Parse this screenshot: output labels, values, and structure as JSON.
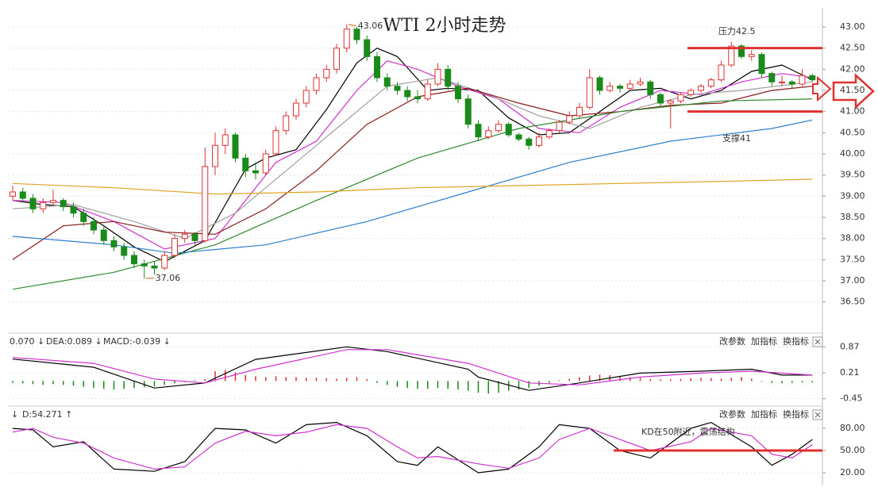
{
  "chart_data": [
    {
      "type": "candlestick",
      "title": "WTI 2小时走势",
      "grid": true,
      "up_color": "#e03030",
      "down_color": "#1a8a1a",
      "ylim": [
        35.8,
        43.45
      ],
      "yticks": [
        {
          "value": 36.5,
          "label": "36.50"
        },
        {
          "value": 37,
          "label": "37.00"
        },
        {
          "value": 37.5,
          "label": "37.50"
        },
        {
          "value": 38,
          "label": "38.00"
        },
        {
          "value": 38.5,
          "label": "38.50"
        },
        {
          "value": 39,
          "label": "39.00"
        },
        {
          "value": 39.5,
          "label": "39.50"
        },
        {
          "value": 40,
          "label": "40.00"
        },
        {
          "value": 40.5,
          "label": "40.50"
        },
        {
          "value": 41,
          "label": "41.00"
        },
        {
          "value": 41.5,
          "label": "41.50"
        },
        {
          "value": 42,
          "label": "42.00"
        },
        {
          "value": 42.5,
          "label": "42.50"
        },
        {
          "value": 43,
          "label": "43.00"
        }
      ],
      "candles": [
        [
          39.0,
          39.25,
          38.9,
          39.1
        ],
        [
          39.1,
          39.2,
          38.85,
          38.95
        ],
        [
          38.95,
          39.05,
          38.6,
          38.7
        ],
        [
          38.7,
          38.95,
          38.6,
          38.85
        ],
        [
          38.85,
          39.15,
          38.8,
          38.9
        ],
        [
          38.9,
          38.95,
          38.65,
          38.75
        ],
        [
          38.75,
          38.85,
          38.5,
          38.6
        ],
        [
          38.6,
          38.7,
          38.3,
          38.4
        ],
        [
          38.4,
          38.5,
          38.1,
          38.2
        ],
        [
          38.2,
          38.3,
          37.85,
          37.95
        ],
        [
          37.95,
          38.05,
          37.7,
          37.8
        ],
        [
          37.8,
          37.9,
          37.5,
          37.6
        ],
        [
          37.6,
          37.7,
          37.3,
          37.4
        ],
        [
          37.4,
          37.5,
          37.06,
          37.35
        ],
        [
          37.35,
          37.45,
          37.15,
          37.3
        ],
        [
          37.3,
          37.7,
          37.25,
          37.6
        ],
        [
          37.6,
          38.1,
          37.55,
          38.0
        ],
        [
          38.0,
          38.2,
          37.9,
          38.1
        ],
        [
          38.1,
          38.15,
          37.85,
          37.95
        ],
        [
          37.95,
          40.15,
          37.9,
          39.7
        ],
        [
          39.7,
          40.5,
          39.5,
          40.2
        ],
        [
          40.2,
          40.6,
          40.0,
          40.45
        ],
        [
          40.45,
          40.5,
          39.8,
          39.9
        ],
        [
          39.9,
          40.0,
          39.45,
          39.6
        ],
        [
          39.6,
          39.8,
          39.4,
          39.55
        ],
        [
          39.55,
          40.1,
          39.5,
          40.0
        ],
        [
          40.0,
          40.65,
          39.95,
          40.55
        ],
        [
          40.55,
          41.0,
          40.45,
          40.9
        ],
        [
          40.9,
          41.3,
          40.8,
          41.2
        ],
        [
          41.2,
          41.6,
          41.1,
          41.5
        ],
        [
          41.5,
          41.9,
          41.4,
          41.8
        ],
        [
          41.8,
          42.1,
          41.7,
          42.0
        ],
        [
          42.0,
          42.6,
          41.9,
          42.5
        ],
        [
          42.5,
          43.06,
          42.4,
          42.95
        ],
        [
          42.95,
          43.0,
          42.6,
          42.7
        ],
        [
          42.7,
          42.8,
          42.2,
          42.3
        ],
        [
          42.3,
          42.4,
          41.7,
          41.8
        ],
        [
          41.8,
          41.9,
          41.5,
          41.6
        ],
        [
          41.6,
          41.7,
          41.4,
          41.5
        ],
        [
          41.5,
          41.6,
          41.25,
          41.35
        ],
        [
          41.35,
          41.5,
          41.2,
          41.3
        ],
        [
          41.3,
          41.75,
          41.25,
          41.65
        ],
        [
          41.65,
          42.15,
          41.6,
          42.0
        ],
        [
          42.0,
          42.1,
          41.5,
          41.6
        ],
        [
          41.6,
          41.7,
          41.2,
          41.3
        ],
        [
          41.3,
          41.4,
          40.6,
          40.7
        ],
        [
          40.7,
          40.8,
          40.3,
          40.4
        ],
        [
          40.4,
          40.65,
          40.35,
          40.55
        ],
        [
          40.55,
          40.8,
          40.5,
          40.7
        ],
        [
          40.7,
          40.75,
          40.4,
          40.45
        ],
        [
          40.45,
          40.5,
          40.3,
          40.35
        ],
        [
          40.35,
          40.4,
          40.1,
          40.2
        ],
        [
          40.2,
          40.5,
          40.15,
          40.4
        ],
        [
          40.4,
          40.6,
          40.35,
          40.55
        ],
        [
          40.55,
          40.8,
          40.5,
          40.75
        ],
        [
          40.75,
          41.0,
          40.7,
          40.9
        ],
        [
          40.9,
          41.2,
          40.85,
          41.1
        ],
        [
          41.1,
          42.0,
          41.05,
          41.8
        ],
        [
          41.8,
          41.85,
          41.4,
          41.5
        ],
        [
          41.5,
          41.7,
          41.45,
          41.6
        ],
        [
          41.6,
          41.65,
          41.45,
          41.55
        ],
        [
          41.55,
          41.75,
          41.5,
          41.65
        ],
        [
          41.65,
          41.8,
          41.6,
          41.7
        ],
        [
          41.7,
          41.75,
          41.3,
          41.4
        ],
        [
          41.4,
          41.45,
          41.1,
          41.2
        ],
        [
          41.2,
          41.3,
          40.6,
          41.25
        ],
        [
          41.25,
          41.45,
          41.2,
          41.4
        ],
        [
          41.4,
          41.55,
          41.35,
          41.5
        ],
        [
          41.5,
          41.65,
          41.45,
          41.6
        ],
        [
          41.6,
          41.8,
          41.55,
          41.75
        ],
        [
          41.75,
          42.2,
          41.7,
          42.1
        ],
        [
          42.1,
          42.65,
          42.05,
          42.55
        ],
        [
          42.55,
          42.6,
          42.25,
          42.3
        ],
        [
          42.3,
          42.45,
          42.2,
          42.35
        ],
        [
          42.35,
          42.4,
          41.8,
          41.9
        ],
        [
          41.9,
          41.95,
          41.6,
          41.7
        ],
        [
          41.7,
          41.85,
          41.6,
          41.7
        ],
        [
          41.7,
          41.75,
          41.55,
          41.65
        ],
        [
          41.65,
          42.0,
          41.6,
          41.85
        ],
        [
          41.85,
          41.9,
          41.7,
          41.75
        ]
      ],
      "series": [
        {
          "color": "#000000",
          "x": [
            0,
            3,
            6,
            9,
            12,
            15,
            17,
            19,
            21,
            23,
            25,
            28,
            31,
            34,
            36,
            38,
            41,
            43,
            46,
            49,
            52,
            55,
            58,
            61,
            64,
            67,
            70,
            73,
            76,
            79
          ],
          "values": [
            38.9,
            38.8,
            38.75,
            38.3,
            37.8,
            37.45,
            37.7,
            37.95,
            38.8,
            39.64,
            39.9,
            40.1,
            41.05,
            42.15,
            42.5,
            42.3,
            41.5,
            41.55,
            41.5,
            40.85,
            40.45,
            40.5,
            41.0,
            41.5,
            41.55,
            41.3,
            41.5,
            41.95,
            42.1,
            41.75
          ]
        },
        {
          "color": "#d030d0",
          "x": [
            0,
            5,
            10,
            15,
            20,
            23,
            26,
            30,
            34,
            37,
            40,
            44,
            48,
            52,
            56,
            60,
            64,
            68,
            72,
            76,
            79
          ],
          "values": [
            38.9,
            38.85,
            38.4,
            37.75,
            38.0,
            38.9,
            39.8,
            40.3,
            41.5,
            42.2,
            42.0,
            41.6,
            41.3,
            40.6,
            40.5,
            41.1,
            41.5,
            41.4,
            41.7,
            41.9,
            41.8
          ]
        },
        {
          "color": "#a0a0a0",
          "x": [
            0,
            6,
            12,
            17,
            22,
            27,
            32,
            37,
            42,
            47,
            52,
            57,
            62,
            67,
            72,
            79
          ],
          "values": [
            38.7,
            38.8,
            38.4,
            38.0,
            38.6,
            39.6,
            40.6,
            41.6,
            41.8,
            41.4,
            40.9,
            40.6,
            41.1,
            41.4,
            41.5,
            41.7
          ]
        },
        {
          "color": "#8b1a1a",
          "x": [
            0,
            5,
            10,
            15,
            20,
            25,
            30,
            35,
            40,
            45,
            50,
            55,
            60,
            65,
            70,
            75,
            79
          ],
          "values": [
            37.5,
            38.3,
            38.4,
            38.15,
            38.1,
            38.7,
            39.6,
            40.7,
            41.35,
            41.55,
            41.2,
            40.9,
            41.0,
            41.15,
            41.2,
            41.5,
            41.6
          ]
        },
        {
          "color": "#2e8b2e",
          "x": [
            0,
            10,
            20,
            30,
            40,
            50,
            60,
            70,
            79
          ],
          "values": [
            36.8,
            37.2,
            37.85,
            38.9,
            39.9,
            40.6,
            41.0,
            41.25,
            41.3
          ]
        },
        {
          "color": "#2a7fd0",
          "x": [
            0,
            10,
            16,
            25,
            35,
            45,
            55,
            65,
            75,
            79
          ],
          "values": [
            38.05,
            37.85,
            37.65,
            37.85,
            38.4,
            39.1,
            39.8,
            40.3,
            40.6,
            40.8
          ]
        },
        {
          "color": "#e0a020",
          "x": [
            0,
            10,
            20,
            30,
            40,
            50,
            60,
            70,
            79
          ],
          "values": [
            39.3,
            39.2,
            39.05,
            39.1,
            39.2,
            39.25,
            39.3,
            39.35,
            39.4
          ]
        }
      ],
      "levels": [
        {
          "label": "压力42.5",
          "value": 42.5,
          "color": "#e03030"
        },
        {
          "label": "支撑41",
          "value": 41,
          "color": "#e03030"
        }
      ]
    },
    {
      "type": "macd",
      "grid": true,
      "header": [
        "0.070 ↓",
        "DEA:0.089 ↓",
        "MACD:-0.039 ↓"
      ],
      "buttons": [
        "改参数",
        "加指标",
        "换指标"
      ],
      "ylim": [
        -0.6,
        1.18
      ],
      "yticks": [
        -0.45,
        0.21,
        0.87
      ],
      "up_color": "#e03030",
      "down_color": "#1a8a1a",
      "histogram": [
        -0.05,
        -0.06,
        -0.08,
        -0.1,
        -0.08,
        -0.1,
        -0.12,
        -0.15,
        -0.18,
        -0.2,
        -0.22,
        -0.2,
        -0.18,
        -0.16,
        -0.14,
        -0.1,
        -0.06,
        -0.03,
        0.02,
        0.05,
        0.25,
        0.28,
        0.22,
        0.15,
        0.12,
        0.1,
        0.12,
        0.1,
        0.1,
        0.08,
        0.08,
        0.07,
        0.06,
        0.08,
        0.1,
        0.05,
        -0.05,
        -0.1,
        -0.15,
        -0.18,
        -0.2,
        -0.2,
        -0.18,
        -0.2,
        -0.22,
        -0.25,
        -0.3,
        -0.32,
        -0.3,
        -0.25,
        -0.22,
        -0.18,
        -0.12,
        -0.05,
        0.02,
        0.06,
        0.1,
        0.14,
        0.16,
        0.15,
        0.12,
        0.1,
        0.08,
        0.05,
        0.04,
        0.04,
        0.05,
        0.07,
        0.08,
        0.07,
        0.06,
        0.08,
        0.1,
        0.06,
        -0.02,
        -0.05,
        -0.06,
        -0.05,
        -0.04,
        -0.04
      ],
      "series": [
        {
          "color": "#000000",
          "x": [
            0,
            8,
            14,
            19,
            24,
            33,
            37,
            45,
            46,
            51,
            56,
            62,
            68,
            73,
            76,
            79
          ],
          "values": [
            0.56,
            0.35,
            -0.18,
            -0.05,
            0.55,
            0.87,
            0.75,
            0.3,
            0.1,
            -0.24,
            -0.05,
            0.2,
            0.25,
            0.3,
            0.15,
            0.15
          ]
        },
        {
          "color": "#d030d0",
          "x": [
            0,
            8,
            14,
            19,
            24,
            33,
            37,
            45,
            51,
            56,
            62,
            68,
            73,
            76,
            79
          ],
          "values": [
            0.6,
            0.45,
            0.05,
            -0.05,
            0.3,
            0.8,
            0.8,
            0.45,
            -0.05,
            -0.1,
            0.1,
            0.2,
            0.25,
            0.2,
            0.15
          ]
        }
      ]
    },
    {
      "type": "kd",
      "grid": true,
      "header": [
        "↓",
        "D:54.271 ↑"
      ],
      "buttons": [
        "改参数",
        "加指标",
        "换指标"
      ],
      "ylim": [
        5,
        108
      ],
      "yticks": [
        {
          "value": 20,
          "label": "20.00"
        },
        {
          "value": 50,
          "label": "50.00"
        },
        {
          "value": 80,
          "label": "80.00"
        }
      ],
      "series": [
        {
          "color": "#000000",
          "x": [
            0,
            2,
            4,
            7,
            10,
            14,
            17,
            20,
            23,
            26,
            29,
            32,
            35,
            38,
            40,
            42,
            46,
            49,
            52,
            54,
            57,
            60,
            63,
            67,
            69,
            73,
            75,
            77,
            79
          ],
          "values": [
            80,
            78,
            55,
            62,
            25,
            22,
            35,
            80,
            78,
            60,
            85,
            88,
            70,
            35,
            30,
            55,
            20,
            25,
            55,
            85,
            80,
            50,
            40,
            80,
            88,
            55,
            30,
            45,
            65
          ]
        },
        {
          "color": "#d030d0",
          "x": [
            0,
            2,
            4,
            7,
            10,
            14,
            17,
            20,
            23,
            26,
            29,
            32,
            35,
            38,
            40,
            42,
            46,
            49,
            52,
            54,
            57,
            60,
            63,
            67,
            69,
            73,
            75,
            77,
            79
          ],
          "values": [
            75,
            80,
            68,
            60,
            40,
            25,
            28,
            60,
            76,
            70,
            75,
            85,
            80,
            55,
            40,
            42,
            32,
            26,
            40,
            65,
            80,
            65,
            50,
            62,
            80,
            70,
            45,
            40,
            58
          ]
        }
      ],
      "levels": [
        {
          "label": "KD在50附近，震荡结构",
          "value": 50,
          "color": "#e03030"
        }
      ]
    }
  ]
}
